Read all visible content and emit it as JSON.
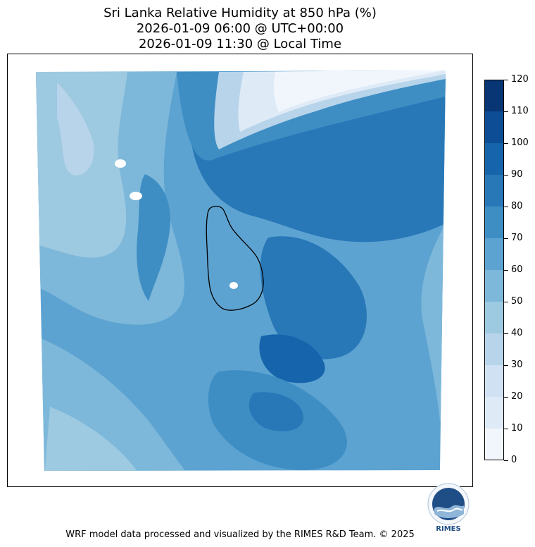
{
  "title": {
    "line1": "Sri Lanka Relative Humidity at 850 hPa (%)",
    "line2": "2026-01-09 06:00 @ UTC+00:00",
    "line3": "2026-01-09 11:30 @ Local Time"
  },
  "colorbar": {
    "ticks": [
      "0",
      "10",
      "20",
      "30",
      "40",
      "50",
      "60",
      "70",
      "80",
      "90",
      "100",
      "110",
      "120"
    ],
    "colors": [
      "#f1f6fc",
      "#deebf7",
      "#cfe1f2",
      "#b7d4ea",
      "#9dc9e1",
      "#7db8da",
      "#5da3d1",
      "#3e8ec4",
      "#2878b8",
      "#1664ab",
      "#0c4d95",
      "#083573"
    ]
  },
  "logo": {
    "text": "RIMES"
  },
  "credit": "WRF model data processed and visualized by the RIMES R&D Team. © 2025"
}
